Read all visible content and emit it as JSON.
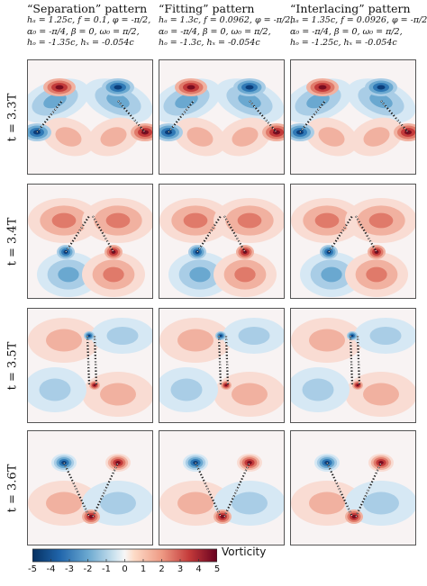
{
  "columns": [
    {
      "title": "“Separation” pattern",
      "line1": "hₐ = 1.25c, f = 0.1, φ = -π/2,",
      "line2": "α₀ = -π/4, β = 0, ω₀ = π/2,",
      "line3": "hₒ = -1.35c, hₓ = -0.054c"
    },
    {
      "title": "“Fitting” pattern",
      "line1": "hₐ = 1.3c, f = 0.0962, φ = -π/2,",
      "line2": "α₀ = -π/4, β = 0, ω₀ = π/2,",
      "line3": "hₒ = -1.3c, hₓ = -0.054c"
    },
    {
      "title": "“Interlacing” pattern",
      "line1": "hₐ = 1.35c, f = 0.0926, φ = -π/2,",
      "line2": "α₀ = -π/4, β = 0, ω₀ = π/2,",
      "line3": "hₒ = -1.25c, hₓ = -0.054c"
    }
  ],
  "rows": [
    {
      "label": "t = 3.3T"
    },
    {
      "label": "t = 3.4T"
    },
    {
      "label": "t = 3.5T"
    },
    {
      "label": "t = 3.6T"
    }
  ],
  "colorbar": {
    "title": "Vorticity",
    "ticks": [
      "-5",
      "-4",
      "-3",
      "-2",
      "-1",
      "0",
      "1",
      "2",
      "3",
      "4",
      "5"
    ],
    "neg_color": "#053061",
    "pos_color": "#67001f"
  }
}
